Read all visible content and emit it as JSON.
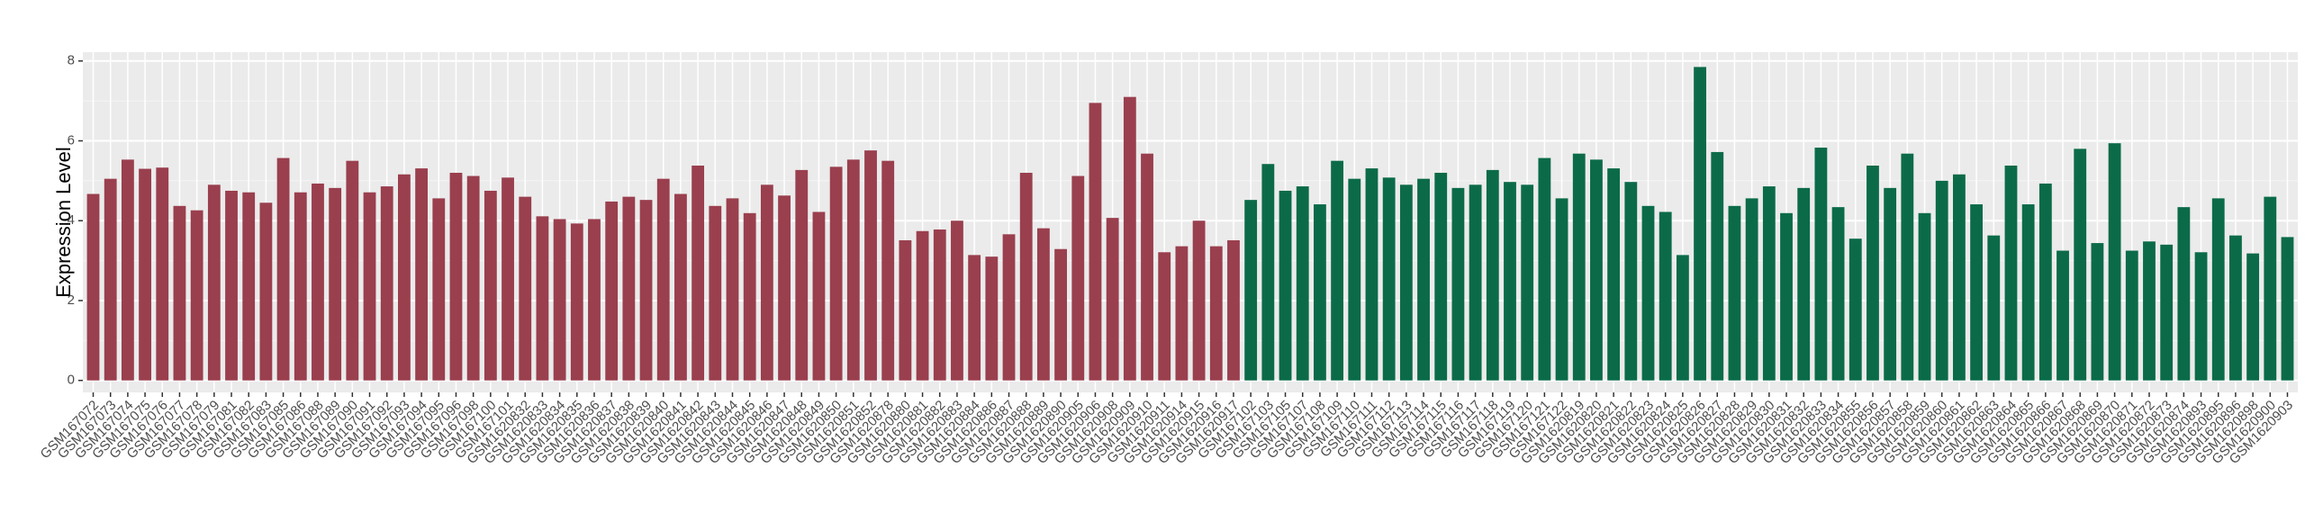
{
  "chart_data": {
    "type": "bar",
    "y_label": "Expression Level",
    "ylim": [
      -0.3,
      8.22
    ],
    "yticks": [
      0,
      2,
      4,
      6,
      8
    ],
    "grid": true,
    "series": [
      {
        "color": "#9a3f4e",
        "categories": [
          "GSM167072",
          "GSM167073",
          "GSM167074",
          "GSM167075",
          "GSM167076",
          "GSM167077",
          "GSM167078",
          "GSM167079",
          "GSM167081",
          "GSM167082",
          "GSM167083",
          "GSM167085",
          "GSM167086",
          "GSM167088",
          "GSM167089",
          "GSM167090",
          "GSM167091",
          "GSM167092",
          "GSM167093",
          "GSM167094",
          "GSM167095",
          "GSM167096",
          "GSM167098",
          "GSM167100",
          "GSM167101",
          "GSM1620832",
          "GSM1620833",
          "GSM1620834",
          "GSM1620835",
          "GSM1620836",
          "GSM1620837",
          "GSM1620838",
          "GSM1620839",
          "GSM1620840",
          "GSM1620841",
          "GSM1620842",
          "GSM1620843",
          "GSM1620844",
          "GSM1620845",
          "GSM1620846",
          "GSM1620847",
          "GSM1620848",
          "GSM1620849",
          "GSM1620850",
          "GSM1620851",
          "GSM1620852",
          "GSM1620878",
          "GSM1620880",
          "GSM1620881",
          "GSM1620882",
          "GSM1620883",
          "GSM1620884",
          "GSM1620886",
          "GSM1620887",
          "GSM1620888",
          "GSM1620889",
          "GSM1620890",
          "GSM1620905",
          "GSM1620906",
          "GSM1620908",
          "GSM1620909",
          "GSM1620910",
          "GSM1620911",
          "GSM1620914",
          "GSM1620915",
          "GSM1620916",
          "GSM1620917"
        ],
        "values": [
          4.67,
          5.05,
          5.53,
          5.3,
          5.33,
          4.37,
          4.26,
          4.9,
          4.75,
          4.71,
          4.45,
          5.57,
          4.71,
          4.93,
          4.82,
          5.5,
          4.71,
          4.86,
          5.16,
          5.31,
          4.56,
          5.2,
          5.12,
          4.75,
          5.08,
          4.6,
          4.11,
          4.04,
          3.93,
          4.04,
          4.48,
          4.6,
          4.52,
          5.05,
          4.67,
          5.38,
          4.37,
          4.56,
          4.19,
          4.9,
          4.63,
          5.27,
          4.22,
          5.35,
          5.53,
          5.76,
          5.5,
          3.51,
          3.74,
          3.78,
          4.0,
          3.14,
          3.1,
          3.66,
          5.2,
          3.81,
          3.29,
          5.12,
          6.95,
          4.07,
          7.1,
          5.68,
          3.21,
          3.36,
          4.0,
          3.36,
          3.51
        ]
      },
      {
        "color": "#0b6b48",
        "categories": [
          "GSM167102",
          "GSM167103",
          "GSM167105",
          "GSM167107",
          "GSM167108",
          "GSM167109",
          "GSM167110",
          "GSM167111",
          "GSM167112",
          "GSM167113",
          "GSM167114",
          "GSM167115",
          "GSM167116",
          "GSM167117",
          "GSM167118",
          "GSM167119",
          "GSM167120",
          "GSM167121",
          "GSM167122",
          "GSM1620819",
          "GSM1620820",
          "GSM1620821",
          "GSM1620822",
          "GSM1620823",
          "GSM1620824",
          "GSM1620825",
          "GSM1620826",
          "GSM1620827",
          "GSM1620828",
          "GSM1620829",
          "GSM1620830",
          "GSM1620831",
          "GSM1620832",
          "GSM1620833",
          "GSM1620834",
          "GSM1620855",
          "GSM1620856",
          "GSM1620857",
          "GSM1620858",
          "GSM1620859",
          "GSM1620860",
          "GSM1620861",
          "GSM1620862",
          "GSM1620863",
          "GSM1620864",
          "GSM1620865",
          "GSM1620866",
          "GSM1620867",
          "GSM1620868",
          "GSM1620869",
          "GSM1620870",
          "GSM1620871",
          "GSM1620872",
          "GSM1620873",
          "GSM1620874",
          "GSM1620893",
          "GSM1620895",
          "GSM1620896",
          "GSM1620898",
          "GSM1620900",
          "GSM1620903"
        ],
        "values": [
          4.52,
          5.42,
          4.75,
          4.86,
          4.41,
          5.5,
          5.05,
          5.31,
          5.08,
          4.9,
          5.05,
          5.2,
          4.82,
          4.9,
          5.27,
          4.97,
          4.9,
          5.57,
          4.56,
          5.68,
          5.53,
          5.31,
          4.97,
          4.37,
          4.22,
          3.14,
          7.85,
          5.72,
          4.37,
          4.56,
          4.86,
          4.19,
          4.82,
          5.83,
          4.34,
          3.55,
          5.38,
          4.82,
          5.68,
          4.19,
          5.0,
          5.16,
          4.41,
          3.63,
          5.38,
          4.41,
          4.93,
          3.25,
          5.8,
          3.44,
          5.94,
          3.25,
          3.48,
          3.4,
          4.34,
          3.21,
          4.56,
          3.63,
          3.18,
          4.6,
          3.59
        ]
      }
    ]
  }
}
